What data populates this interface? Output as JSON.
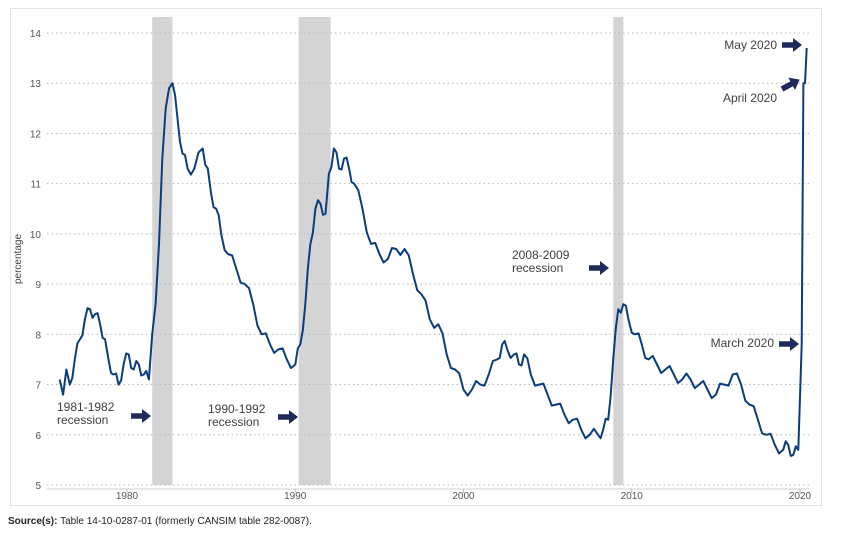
{
  "chart_data": {
    "type": "line",
    "ylabel": "percentage",
    "ylim": [
      5,
      14
    ],
    "xlim": [
      1976,
      2020.6
    ],
    "yticks": [
      5,
      6,
      7,
      8,
      9,
      10,
      11,
      12,
      13,
      14
    ],
    "xticks": [
      1980,
      1990,
      2000,
      2010,
      2020
    ],
    "grid": "horizontal dotted",
    "line_color": "#0b3d7c",
    "shade_color": "#d4d4d4",
    "arrow_color": "#1e2a5a",
    "recessions": [
      [
        1981.5,
        1982.7
      ],
      [
        1990.2,
        1992.1
      ],
      [
        2008.9,
        2009.5
      ]
    ],
    "series": [
      {
        "x": [
          1976.0,
          1976.2,
          1976.4,
          1976.6,
          1976.9,
          1977.2,
          1977.5,
          1977.8,
          1978.1,
          1978.4,
          1978.7,
          1978.9,
          1979.2,
          1979.5,
          1979.8,
          1980.1,
          1980.4,
          1980.7,
          1981.0,
          1981.3,
          1981.5,
          1981.7,
          1981.9,
          1982.1,
          1982.3,
          1982.5,
          1982.7,
          1983.0,
          1983.3,
          1983.6,
          1984.0,
          1984.5,
          1984.8,
          1985.0,
          1985.3,
          1985.6,
          1986.0,
          1986.5,
          1987.0,
          1987.5,
          1988.0,
          1988.5,
          1989.0,
          1989.5,
          1990.0,
          1990.3,
          1990.6,
          1990.9,
          1991.2,
          1991.5,
          1991.8,
          1992.0,
          1992.3,
          1992.6,
          1992.9,
          1993.2,
          1993.5,
          1994.0,
          1994.5,
          1995.0,
          1995.5,
          1996.0,
          1996.5,
          1997.0,
          1997.5,
          1998.0,
          1998.5,
          1999.0,
          1999.5,
          2000.0,
          2000.5,
          2001.0,
          2001.5,
          2002.0,
          2002.3,
          2002.6,
          2003.0,
          2003.3,
          2003.6,
          2004.0,
          2004.5,
          2005.0,
          2005.5,
          2006.0,
          2006.5,
          2007.0,
          2007.5,
          2008.0,
          2008.3,
          2008.6,
          2008.9,
          2009.2,
          2009.5,
          2009.8,
          2010.2,
          2010.6,
          2011.0,
          2011.5,
          2012.0,
          2012.5,
          2013.0,
          2013.5,
          2014.0,
          2014.5,
          2015.0,
          2015.5,
          2016.0,
          2016.5,
          2017.0,
          2017.5,
          2018.0,
          2018.5,
          2019.0,
          2019.3,
          2019.6,
          2019.9,
          2020.1,
          2020.2,
          2020.3,
          2020.4
        ],
        "values": [
          7.1,
          6.8,
          7.3,
          7.0,
          7.5,
          7.9,
          8.3,
          8.5,
          8.4,
          8.2,
          7.9,
          7.5,
          7.2,
          7.0,
          7.4,
          7.6,
          7.3,
          7.4,
          7.2,
          7.1,
          8.0,
          8.6,
          9.8,
          11.5,
          12.5,
          12.9,
          13.0,
          12.3,
          11.6,
          11.3,
          11.3,
          11.7,
          11.3,
          10.8,
          10.5,
          10.0,
          9.6,
          9.3,
          9.0,
          8.6,
          8.0,
          7.8,
          7.7,
          7.5,
          7.4,
          7.8,
          8.6,
          9.8,
          10.5,
          10.6,
          10.4,
          11.2,
          11.7,
          11.3,
          11.5,
          11.3,
          11.0,
          10.5,
          9.8,
          9.6,
          9.5,
          9.7,
          9.7,
          9.2,
          8.8,
          8.3,
          8.2,
          7.6,
          7.3,
          6.9,
          6.9,
          7.0,
          7.2,
          7.5,
          7.8,
          7.7,
          7.6,
          7.4,
          7.6,
          7.2,
          7.0,
          6.8,
          6.6,
          6.4,
          6.3,
          6.1,
          6.0,
          6.0,
          6.1,
          6.3,
          7.5,
          8.5,
          8.6,
          8.3,
          8.0,
          7.8,
          7.5,
          7.4,
          7.3,
          7.2,
          7.1,
          7.1,
          7.0,
          6.9,
          6.8,
          7.0,
          7.2,
          7.0,
          6.6,
          6.3,
          6.0,
          5.8,
          5.7,
          5.8,
          5.6,
          5.7,
          7.8,
          13.0,
          13.0,
          13.7
        ]
      }
    ],
    "annotations": [
      {
        "lines": [
          "1981-1982",
          "recession"
        ]
      },
      {
        "lines": [
          "1990-1992",
          "recession"
        ]
      },
      {
        "lines": [
          "2008-2009",
          "recession"
        ]
      },
      {
        "lines": [
          "March 2020"
        ]
      },
      {
        "lines": [
          "April 2020"
        ]
      },
      {
        "lines": [
          "May 2020"
        ]
      }
    ]
  },
  "source": {
    "label": "Source(s):",
    "text": "Table 14-10-0287-01 (formerly CANSIM table 282-0087)."
  }
}
